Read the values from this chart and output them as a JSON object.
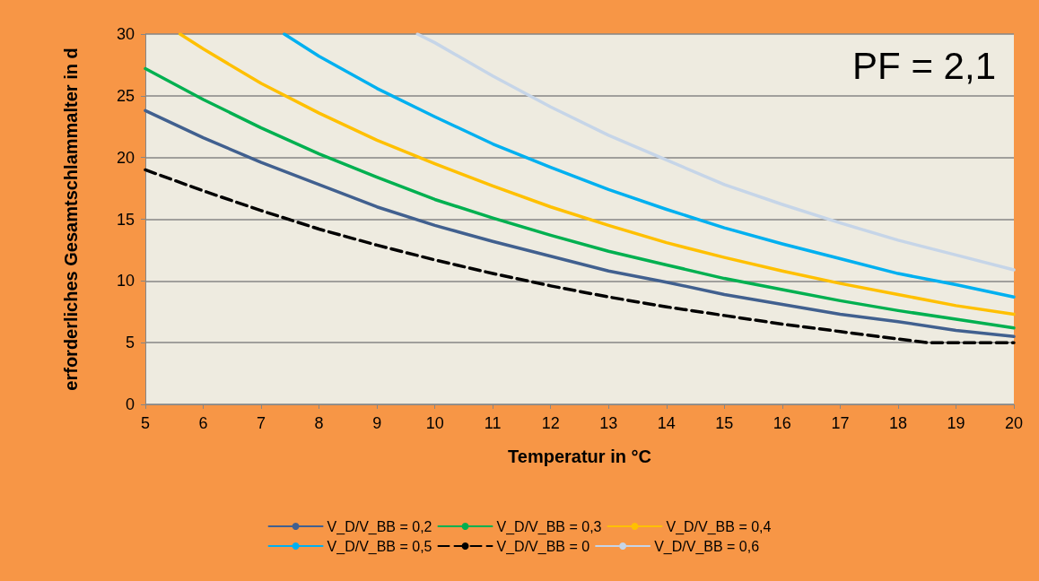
{
  "chart_data": {
    "type": "line",
    "xlabel": "Temperatur in °C",
    "ylabel": "erforderliches Gesamtschlammalter in d",
    "annotations": [
      "PF = 2,1"
    ],
    "xlim": [
      5,
      20
    ],
    "xticks": [
      5,
      6,
      7,
      8,
      9,
      10,
      11,
      12,
      13,
      14,
      15,
      16,
      17,
      18,
      19,
      20
    ],
    "ylim": [
      0,
      30
    ],
    "yticks": [
      0,
      5,
      10,
      15,
      20,
      25,
      30
    ],
    "grid": "y",
    "legend": "bottom",
    "marker": "none",
    "line_style": "solid",
    "series": [
      {
        "name": "V_D/V_BB = 0,2",
        "color": "#41608f",
        "x": [
          5,
          6,
          7,
          8,
          9,
          10,
          11,
          12,
          13,
          14,
          15,
          16,
          17,
          18,
          19,
          20
        ],
        "values": [
          23.8,
          21.6,
          19.6,
          17.8,
          16.0,
          14.5,
          13.2,
          12.0,
          10.8,
          9.9,
          8.9,
          8.1,
          7.3,
          6.7,
          6.0,
          5.5
        ]
      },
      {
        "name": "V_D/V_BB = 0,3",
        "color": "#00b050",
        "x": [
          5,
          6,
          7,
          8,
          9,
          10,
          11,
          12,
          13,
          14,
          15,
          16,
          17,
          18,
          19,
          20
        ],
        "values": [
          27.2,
          24.7,
          22.4,
          20.3,
          18.4,
          16.6,
          15.1,
          13.7,
          12.4,
          11.3,
          10.2,
          9.3,
          8.4,
          7.6,
          6.9,
          6.2
        ]
      },
      {
        "name": "V_D/V_BB = 0,4",
        "color": "#ffc000",
        "x": [
          5.6,
          6,
          7,
          8,
          9,
          10,
          11,
          12,
          13,
          14,
          15,
          16,
          17,
          18,
          19,
          20
        ],
        "values": [
          30,
          28.8,
          26.0,
          23.6,
          21.4,
          19.5,
          17.7,
          16.0,
          14.5,
          13.1,
          11.9,
          10.8,
          9.8,
          8.9,
          8.0,
          7.3
        ]
      },
      {
        "name": "V_D/V_BB = 0,5",
        "color": "#00b0f0",
        "x": [
          7.4,
          8,
          9,
          10,
          11,
          12,
          13,
          14,
          15,
          16,
          17,
          18,
          19,
          20
        ],
        "values": [
          30,
          28.2,
          25.6,
          23.3,
          21.1,
          19.2,
          17.4,
          15.8,
          14.3,
          13.0,
          11.8,
          10.6,
          9.7,
          8.7
        ]
      },
      {
        "name": "V_D/V_BB = 0",
        "color": "#000000",
        "line_style": "dashed",
        "x": [
          5,
          6,
          7,
          8,
          9,
          10,
          11,
          12,
          13,
          14,
          15,
          16,
          17,
          18,
          18.5,
          19,
          20
        ],
        "values": [
          19.0,
          17.3,
          15.7,
          14.2,
          12.9,
          11.7,
          10.6,
          9.6,
          8.7,
          7.9,
          7.2,
          6.5,
          5.9,
          5.3,
          5.0,
          5.0,
          5.0
        ]
      },
      {
        "name": "V_D/V_BB = 0,6",
        "color": "#c6d5e8",
        "x": [
          9.7,
          10,
          11,
          12,
          13,
          14,
          15,
          16,
          17,
          18,
          19,
          20
        ],
        "values": [
          30,
          29.3,
          26.6,
          24.1,
          21.8,
          19.8,
          17.8,
          16.2,
          14.7,
          13.3,
          12.1,
          10.9
        ]
      }
    ]
  }
}
